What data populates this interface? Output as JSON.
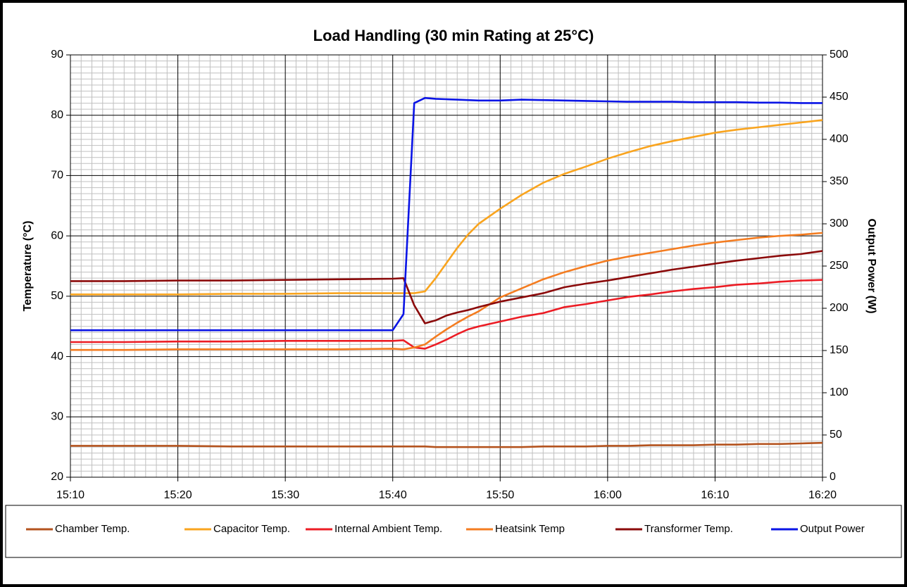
{
  "chart_data": {
    "type": "line",
    "title": "Load Handling (30 min Rating at 25°C)",
    "y_label": "Temperature (°C)",
    "y2_label": "Output Power (W)",
    "x": [
      "15:10",
      "15:15",
      "15:20",
      "15:25",
      "15:30",
      "15:35",
      "15:40",
      "15:41",
      "15:42",
      "15:43",
      "15:44",
      "15:45",
      "15:46",
      "15:47",
      "15:48",
      "15:50",
      "15:52",
      "15:54",
      "15:56",
      "15:58",
      "16:00",
      "16:02",
      "16:04",
      "16:06",
      "16:08",
      "16:10",
      "16:12",
      "16:14",
      "16:16",
      "16:18",
      "16:20"
    ],
    "xlim": [
      "15:10",
      "16:20"
    ],
    "xticks": [
      "15:10",
      "15:20",
      "15:30",
      "15:40",
      "15:50",
      "16:00",
      "16:10",
      "16:20"
    ],
    "ylim": [
      20,
      90
    ],
    "yticks": [
      20,
      30,
      40,
      50,
      60,
      70,
      80,
      90
    ],
    "y2lim": [
      0,
      500
    ],
    "y2ticks": [
      0,
      50,
      100,
      150,
      200,
      250,
      300,
      350,
      400,
      450,
      500
    ],
    "grid": true,
    "minor_grid": true,
    "legend": "bottom",
    "series": [
      {
        "name": "Chamber Temp.",
        "color": "#b4531e",
        "values": [
          25.2,
          25.2,
          25.2,
          25.1,
          25.1,
          25.1,
          25.1,
          25.1,
          25.1,
          25.1,
          25.0,
          25.0,
          25.0,
          25.0,
          25.0,
          25.0,
          25.0,
          25.1,
          25.1,
          25.1,
          25.2,
          25.2,
          25.3,
          25.3,
          25.3,
          25.4,
          25.4,
          25.5,
          25.5,
          25.6,
          25.7
        ]
      },
      {
        "name": "Capacitor Temp.",
        "color": "#f9a41e",
        "values": [
          50.3,
          50.3,
          50.3,
          50.4,
          50.4,
          50.5,
          50.5,
          50.5,
          50.5,
          50.8,
          53.0,
          55.5,
          58.0,
          60.2,
          62.0,
          64.5,
          66.8,
          68.8,
          70.3,
          71.5,
          72.8,
          73.9,
          74.9,
          75.7,
          76.4,
          77.1,
          77.6,
          78.0,
          78.4,
          78.8,
          79.2
        ]
      },
      {
        "name": "Internal Ambient Temp.",
        "color": "#ec1c24",
        "values": [
          42.4,
          42.4,
          42.5,
          42.5,
          42.6,
          42.6,
          42.6,
          42.7,
          41.5,
          41.3,
          42.0,
          42.8,
          43.7,
          44.5,
          45.0,
          45.8,
          46.6,
          47.2,
          48.2,
          48.7,
          49.3,
          49.9,
          50.3,
          50.8,
          51.2,
          51.5,
          51.9,
          52.1,
          52.4,
          52.6,
          52.7
        ]
      },
      {
        "name": "Heatsink Temp",
        "color": "#f47c20",
        "values": [
          41.1,
          41.1,
          41.2,
          41.2,
          41.2,
          41.2,
          41.3,
          41.2,
          41.5,
          42.0,
          43.3,
          44.5,
          45.6,
          46.6,
          47.5,
          49.8,
          51.3,
          52.8,
          54.0,
          55.0,
          55.9,
          56.6,
          57.2,
          57.8,
          58.4,
          58.9,
          59.3,
          59.7,
          60.0,
          60.2,
          60.5
        ]
      },
      {
        "name": "Transformer Temp.",
        "color": "#8b0a0a",
        "values": [
          52.5,
          52.5,
          52.6,
          52.6,
          52.7,
          52.8,
          52.9,
          53.0,
          48.5,
          45.5,
          46.0,
          46.8,
          47.3,
          47.7,
          48.2,
          49.1,
          49.8,
          50.5,
          51.5,
          52.1,
          52.6,
          53.2,
          53.8,
          54.4,
          54.9,
          55.4,
          55.9,
          56.3,
          56.7,
          57.0,
          57.5
        ]
      },
      {
        "name": "Output Power",
        "color": "#0a14e6",
        "axis": "y2",
        "values": [
          174,
          174,
          174,
          174,
          174,
          174,
          174,
          193,
          443,
          449,
          448,
          447.5,
          447,
          446.5,
          446,
          446,
          447,
          446.5,
          446,
          445.5,
          445,
          444.5,
          444.5,
          444.5,
          444,
          444,
          444,
          443.5,
          443.5,
          443,
          443
        ]
      }
    ]
  }
}
